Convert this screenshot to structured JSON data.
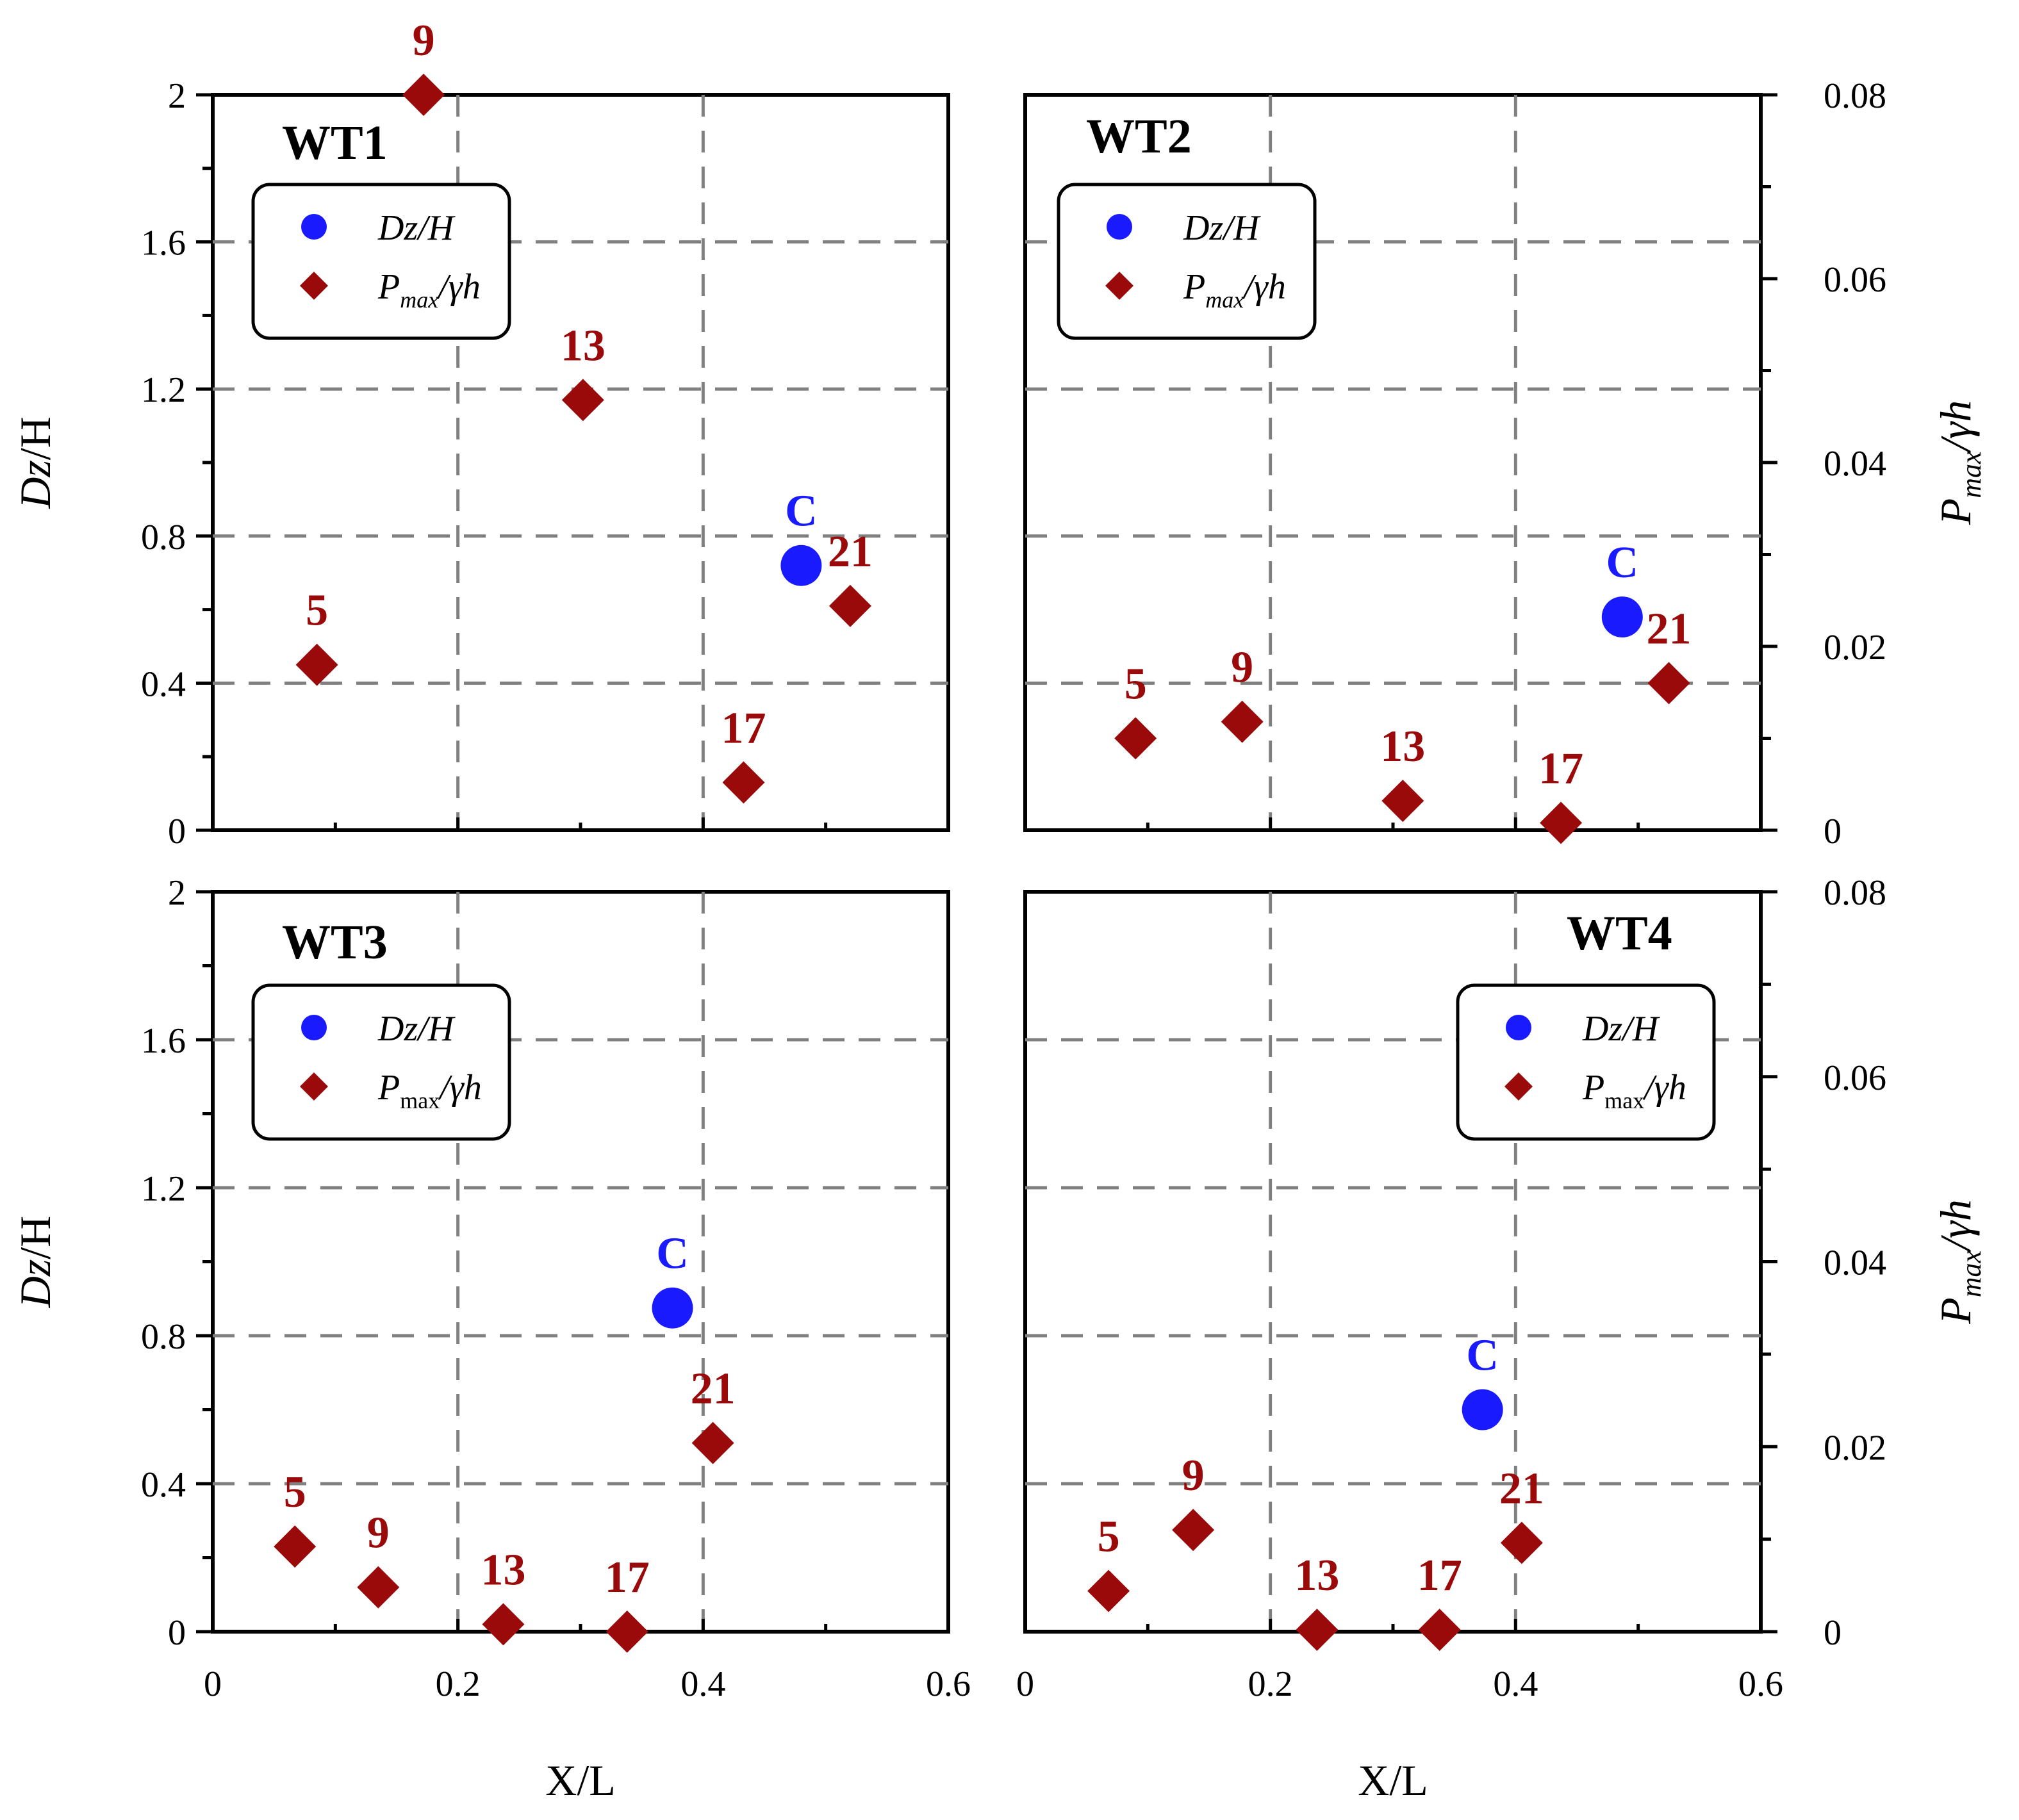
{
  "chart_data": [
    {
      "panel": "WT1",
      "type": "scatter",
      "title": "WT1",
      "xlim": [
        0,
        0.6
      ],
      "ylim_left": [
        0,
        2
      ],
      "ylim_right": [
        0,
        0.08
      ],
      "legend_placement": "top-left",
      "series": [
        {
          "name": "Dz/H",
          "axis": "left",
          "color": "#1a1aff",
          "marker": "circle",
          "points": [
            {
              "x": 0.48,
              "y": 0.72,
              "label": "C"
            }
          ]
        },
        {
          "name": "Pmax/γh",
          "axis": "right",
          "color": "#9b0a0a",
          "marker": "diamond",
          "points": [
            {
              "x": 0.085,
              "y": 0.018,
              "label": "5"
            },
            {
              "x": 0.172,
              "y": 0.08,
              "label": "9"
            },
            {
              "x": 0.302,
              "y": 0.0468,
              "label": "13"
            },
            {
              "x": 0.433,
              "y": 0.0052,
              "label": "17"
            },
            {
              "x": 0.52,
              "y": 0.0244,
              "label": "21"
            }
          ]
        }
      ]
    },
    {
      "panel": "WT2",
      "type": "scatter",
      "title": "WT2",
      "xlim": [
        0,
        0.6
      ],
      "ylim_left": [
        0,
        2
      ],
      "ylim_right": [
        0,
        0.08
      ],
      "legend_placement": "top-left",
      "series": [
        {
          "name": "Dz/H",
          "axis": "left",
          "color": "#1a1aff",
          "marker": "circle",
          "points": [
            {
              "x": 0.487,
              "y": 0.58,
              "label": "C"
            }
          ]
        },
        {
          "name": "Pmax/γh",
          "axis": "right",
          "color": "#9b0a0a",
          "marker": "diamond",
          "points": [
            {
              "x": 0.09,
              "y": 0.01,
              "label": "5"
            },
            {
              "x": 0.177,
              "y": 0.0118,
              "label": "9"
            },
            {
              "x": 0.308,
              "y": 0.0032,
              "label": "13"
            },
            {
              "x": 0.437,
              "y": 0.0008,
              "label": "17"
            },
            {
              "x": 0.525,
              "y": 0.016,
              "label": "21"
            }
          ]
        }
      ]
    },
    {
      "panel": "WT3",
      "type": "scatter",
      "title": "WT3",
      "xlim": [
        0,
        0.6
      ],
      "ylim_left": [
        0,
        2
      ],
      "ylim_right": [
        0,
        0.08
      ],
      "legend_placement": "top-left",
      "series": [
        {
          "name": "Dz/H",
          "axis": "left",
          "color": "#1a1aff",
          "marker": "circle",
          "points": [
            {
              "x": 0.375,
              "y": 0.875,
              "label": "C"
            }
          ]
        },
        {
          "name": "Pmax/γh",
          "axis": "right",
          "color": "#9b0a0a",
          "marker": "diamond",
          "points": [
            {
              "x": 0.067,
              "y": 0.0092,
              "label": "5"
            },
            {
              "x": 0.135,
              "y": 0.0048,
              "label": "9"
            },
            {
              "x": 0.237,
              "y": 0.0008,
              "label": "13"
            },
            {
              "x": 0.338,
              "y": 0.0,
              "label": "17"
            },
            {
              "x": 0.408,
              "y": 0.0204,
              "label": "21"
            }
          ]
        }
      ]
    },
    {
      "panel": "WT4",
      "type": "scatter",
      "title": "WT4",
      "xlim": [
        0,
        0.6
      ],
      "ylim_left": [
        0,
        2
      ],
      "ylim_right": [
        0,
        0.08
      ],
      "legend_placement": "top-right",
      "series": [
        {
          "name": "Dz/H",
          "axis": "left",
          "color": "#1a1aff",
          "marker": "circle",
          "points": [
            {
              "x": 0.373,
              "y": 0.6,
              "label": "C"
            }
          ]
        },
        {
          "name": "Pmax/γh",
          "axis": "right",
          "color": "#9b0a0a",
          "marker": "diamond",
          "points": [
            {
              "x": 0.068,
              "y": 0.0044,
              "label": "5"
            },
            {
              "x": 0.137,
              "y": 0.011,
              "label": "9"
            },
            {
              "x": 0.238,
              "y": 0.0002,
              "label": "13"
            },
            {
              "x": 0.338,
              "y": 0.0002,
              "label": "17"
            },
            {
              "x": 0.405,
              "y": 0.0096,
              "label": "21"
            }
          ]
        }
      ]
    }
  ],
  "axes": {
    "xlabel": "X/L",
    "ylabel_left_main": "Dz",
    "ylabel_left_rest": "/H",
    "ylabel_right_main": "P",
    "ylabel_right_sub": "max",
    "ylabel_right_rest": "/γh",
    "x_ticks": [
      "0",
      "0.2",
      "0.4",
      "0.6"
    ],
    "y_left_ticks": [
      "0",
      "0.4",
      "0.8",
      "1.2",
      "1.6",
      "2"
    ],
    "y_right_ticks": [
      "0",
      "0.02",
      "0.04",
      "0.06",
      "0.08"
    ]
  },
  "legend": {
    "dz_main": "Dz",
    "dz_rest": "/H",
    "p_main": "P",
    "p_sub_italic": "max",
    "p_sub_roman": "max",
    "p_rest": "/γh"
  },
  "colors": {
    "blue": "#1a1aff",
    "red": "#9b0a0a",
    "grid": "#808080"
  }
}
